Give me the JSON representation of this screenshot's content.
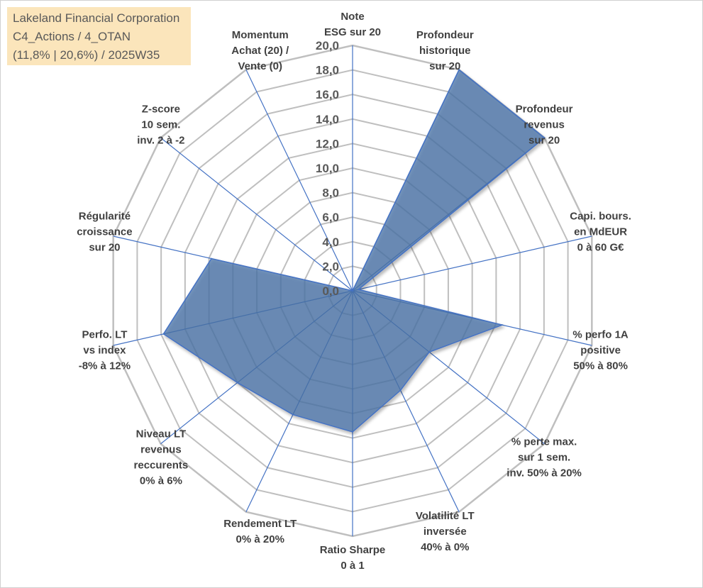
{
  "chart_data": {
    "type": "radar",
    "title_lines": [
      "Lakeland Financial Corporation",
      "C4_Actions / 4_OTAN",
      "(11,8% | 20,6%) / 2025W35"
    ],
    "rlim": [
      0,
      20
    ],
    "ticks": [
      "0,0",
      "2,0",
      "4,0",
      "6,0",
      "8,0",
      "10,0",
      "12,0",
      "14,0",
      "16,0",
      "18,0",
      "20,0"
    ],
    "grid": true,
    "categories": [
      [
        "Note",
        "ESG sur 20"
      ],
      [
        "Profondeur",
        "historique",
        "sur 20"
      ],
      [
        "Profondeur",
        "revenus",
        "sur 20"
      ],
      [
        "Capi. bours.",
        "en MdEUR",
        "0 à 60 G€"
      ],
      [
        "% perfo 1A",
        "positive",
        "50% à 80%"
      ],
      [
        "% perte max.",
        "sur 1 sem.",
        "inv. 50% à 20%"
      ],
      [
        "Volatilité LT",
        "inversée",
        "40% à 0%"
      ],
      [
        "Ratio Sharpe",
        "0 à 1"
      ],
      [
        "Rendement LT",
        "0% à 20%"
      ],
      [
        "Niveau LT",
        "revenus",
        "reccurents",
        "0% à 6%"
      ],
      [
        "Perfo. LT",
        "vs index",
        "-8% à 12%"
      ],
      [
        "Régularité",
        "croissance",
        "sur 20"
      ],
      [
        "Z-score",
        "10 sem.",
        "inv. 2 à -2"
      ],
      [
        "Momentum",
        "Achat (20) /",
        "Vente (0)"
      ]
    ],
    "series": [
      {
        "values": [
          0,
          20,
          20,
          0.5,
          12.5,
          8,
          9,
          11.5,
          11.2,
          12,
          15.8,
          11.8,
          0,
          0
        ]
      }
    ],
    "colors": {
      "fill": "#4a74a8",
      "stroke": "#4472c4",
      "grid": "#bfbfbf",
      "spoke": "#4472c4"
    }
  }
}
